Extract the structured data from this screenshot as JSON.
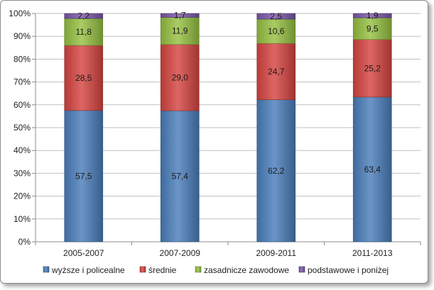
{
  "chart_data": {
    "type": "bar",
    "stacked": true,
    "percent": true,
    "categories": [
      "2005-2007",
      "2007-2009",
      "2009-2011",
      "2011-2013"
    ],
    "series": [
      {
        "name": "wyższe i policealne",
        "color": "#4a7ebb",
        "values": [
          57.5,
          57.4,
          62.2,
          63.4
        ],
        "labels": [
          "57,5",
          "57,4",
          "62,2",
          "63,4"
        ]
      },
      {
        "name": "średnie",
        "color": "#d64541",
        "values": [
          28.5,
          29.0,
          24.7,
          25.2
        ],
        "labels": [
          "28,5",
          "29,0",
          "24,7",
          "25,2"
        ]
      },
      {
        "name": "zasadnicze zawodowe",
        "color": "#96c142",
        "values": [
          11.8,
          11.9,
          10.6,
          9.5
        ],
        "labels": [
          "11,8",
          "11,9",
          "10,6",
          "9,5"
        ]
      },
      {
        "name": "podstawowe i poniżej",
        "color": "#7a58a8",
        "values": [
          2.2,
          1.7,
          2.5,
          1.9
        ],
        "labels": [
          "2,2",
          "1,7",
          "2,5",
          "1,9"
        ]
      }
    ],
    "y_ticks": [
      "0%",
      "10%",
      "20%",
      "30%",
      "40%",
      "50%",
      "60%",
      "70%",
      "80%",
      "90%",
      "100%"
    ],
    "ylim": [
      0,
      100
    ],
    "grid": true,
    "legend_position": "bottom"
  }
}
